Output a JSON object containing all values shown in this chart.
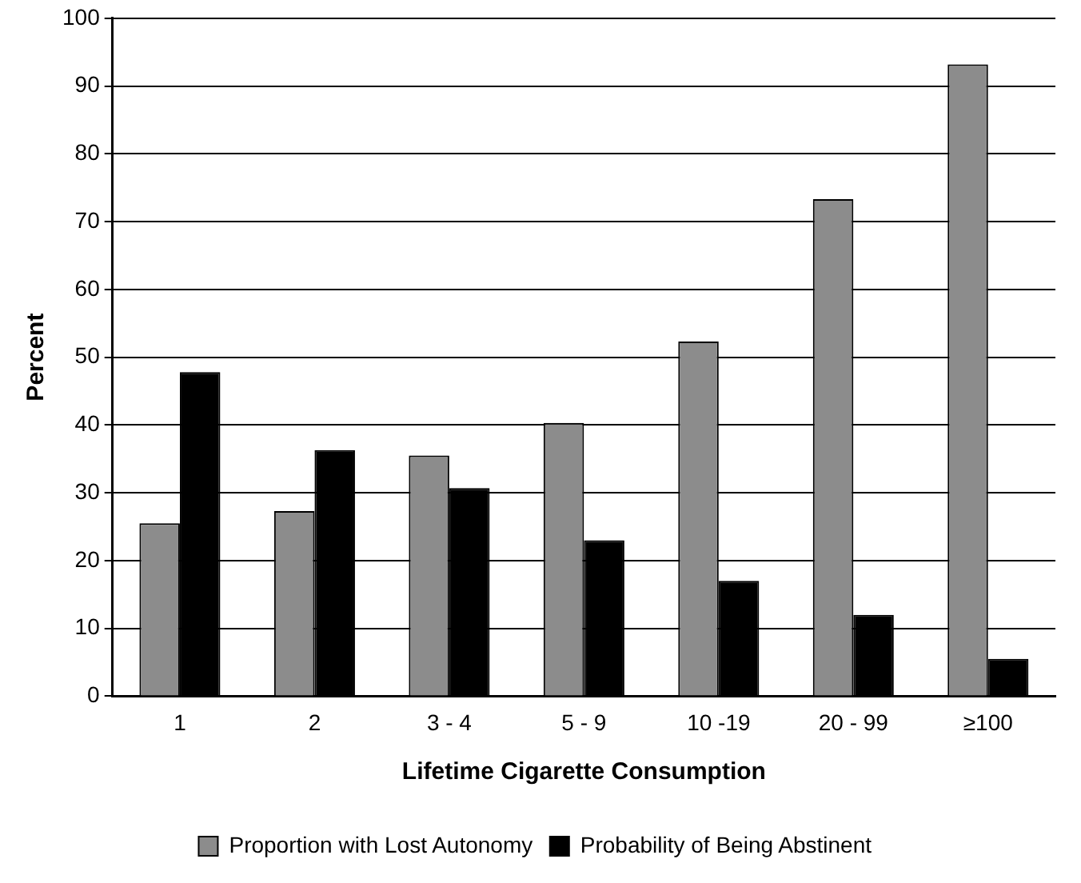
{
  "chart_data": {
    "type": "bar",
    "xlabel": "Lifetime Cigarette Consumption",
    "ylabel": "Percent",
    "categories": [
      "1",
      "2",
      "3 - 4",
      "5 - 9",
      "10 -19",
      "20 - 99",
      "≥100"
    ],
    "series": [
      {
        "name": "Proportion with Lost Autonomy",
        "color": "#8c8c8c",
        "values": [
          25.5,
          27.3,
          35.5,
          40.3,
          52.3,
          73.3,
          93.2
        ]
      },
      {
        "name": "Probability of Being Abstinent",
        "color": "#000000",
        "values": [
          47.8,
          36.3,
          30.7,
          23,
          17,
          12,
          5.5
        ]
      }
    ],
    "ylim": [
      0,
      100
    ],
    "yticks": [
      0,
      10,
      20,
      30,
      40,
      50,
      60,
      70,
      80,
      90,
      100
    ],
    "grid": "y",
    "legend": "bottom"
  }
}
